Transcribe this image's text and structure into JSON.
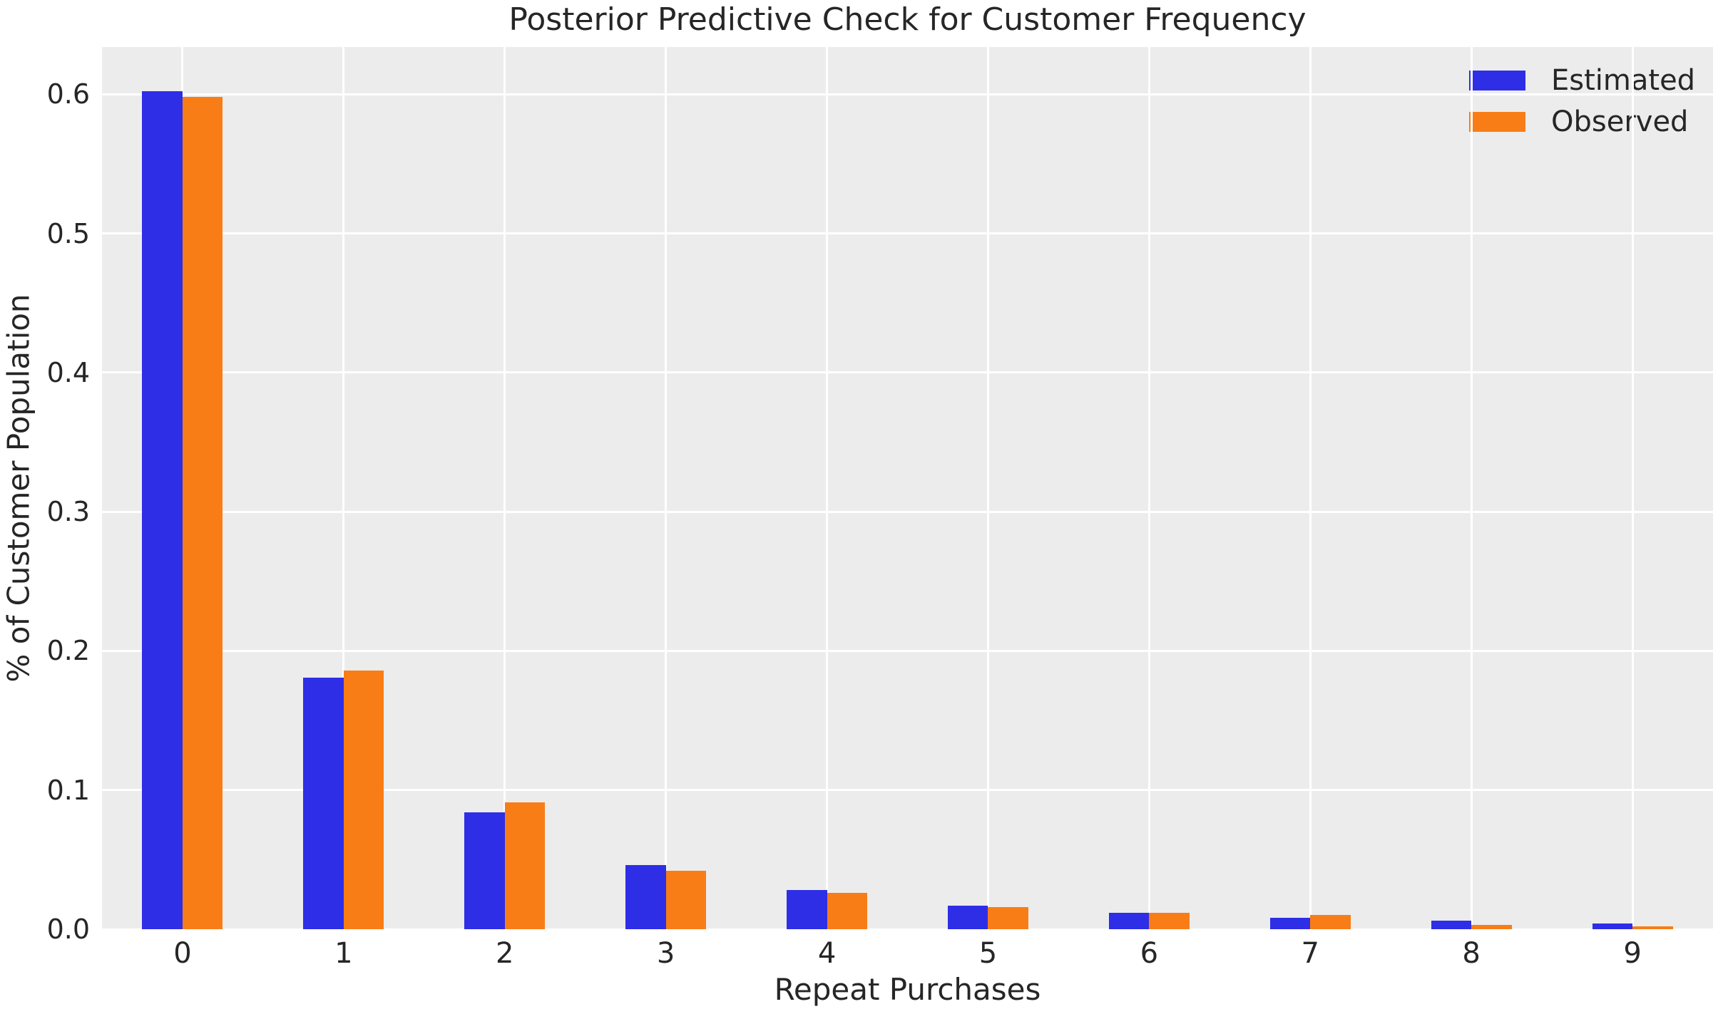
{
  "chart_data": {
    "type": "bar",
    "title": "Posterior Predictive Check for Customer Frequency",
    "xlabel": "Repeat Purchases",
    "ylabel": "% of Customer Population",
    "categories": [
      "0",
      "1",
      "2",
      "3",
      "4",
      "5",
      "6",
      "7",
      "8",
      "9"
    ],
    "series": [
      {
        "name": "Estimated",
        "color": "#2d2ee6",
        "values": [
          0.602,
          0.181,
          0.084,
          0.046,
          0.028,
          0.017,
          0.012,
          0.008,
          0.006,
          0.004
        ]
      },
      {
        "name": "Observed",
        "color": "#f87d17",
        "values": [
          0.598,
          0.186,
          0.091,
          0.042,
          0.026,
          0.016,
          0.012,
          0.01,
          0.003,
          0.002
        ]
      }
    ],
    "yticks": [
      0.0,
      0.1,
      0.2,
      0.3,
      0.4,
      0.5,
      0.6
    ],
    "ytick_labels": [
      "0.0",
      "0.1",
      "0.2",
      "0.3",
      "0.4",
      "0.5",
      "0.6"
    ],
    "ylim": [
      0,
      0.634
    ],
    "xlim": [
      -0.5,
      9.5
    ],
    "bar_width": 0.25,
    "grid": true,
    "legend_position": "upper right",
    "colors": {
      "plot_background": "#ececec",
      "grid": "#ffffff",
      "text": "#262626",
      "figure_background": "#ffffff"
    }
  }
}
